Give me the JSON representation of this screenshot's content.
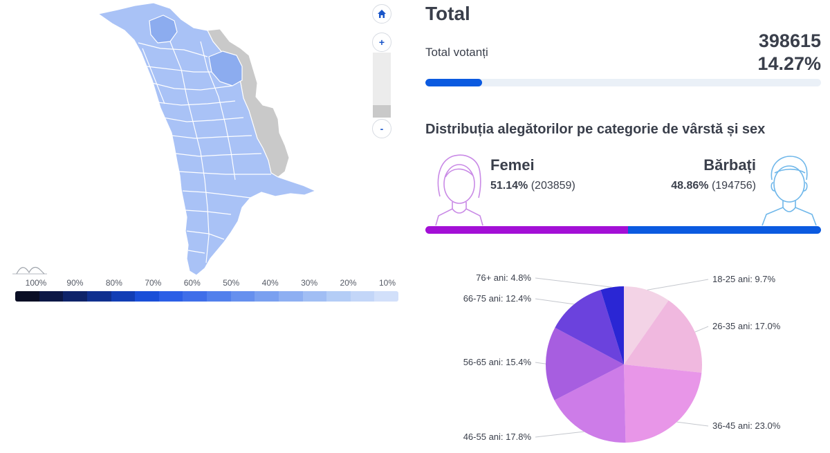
{
  "map": {
    "legend_labels": [
      "100%",
      "90%",
      "80%",
      "70%",
      "60%",
      "50%",
      "40%",
      "30%",
      "20%",
      "10%"
    ],
    "legend_colors": [
      "#0a0e24",
      "#0c1745",
      "#0e2369",
      "#10308f",
      "#123eb5",
      "#1a4fd8",
      "#2c5fe6",
      "#3f6ee9",
      "#5280ec",
      "#6690ee",
      "#7aa0f0",
      "#8eaff2",
      "#a1bef4",
      "#b4cdf6",
      "#c3d6f8",
      "#d2e0fa"
    ],
    "region_color": "#a9c2f6",
    "highlight_color": "#8cacef",
    "disabled_color": "#c9c9c9",
    "zoom": {
      "home_icon": "home-icon",
      "in_label": "+",
      "out_label": "-"
    }
  },
  "summary": {
    "title": "Total",
    "voters_label": "Total votanți",
    "voters_count": "398615",
    "voters_pct": "14.27%",
    "turnout_fraction": 0.1427
  },
  "distribution": {
    "title": "Distribuția alegătorilor pe categorie de vârstă și sex",
    "female": {
      "label": "Femei",
      "pct": "51.14%",
      "count": "(203859)",
      "value": 51.14,
      "color": "#a30fd6"
    },
    "male": {
      "label": "Bărbați",
      "pct": "48.86%",
      "count": "(194756)",
      "value": 48.86,
      "color": "#0b5ae0"
    }
  },
  "chart_data": {
    "type": "pie",
    "slices": [
      {
        "label": "18-25 ani: 9.7%",
        "value": 9.7,
        "color": "#f3d3e6"
      },
      {
        "label": "26-35 ani: 17.0%",
        "value": 17.0,
        "color": "#f0b8df"
      },
      {
        "label": "36-45 ani: 23.0%",
        "value": 23.0,
        "color": "#e896e8"
      },
      {
        "label": "46-55 ani: 17.8%",
        "value": 17.8,
        "color": "#cd7ce8"
      },
      {
        "label": "56-65 ani: 15.4%",
        "value": 15.4,
        "color": "#a75ee0"
      },
      {
        "label": "66-75 ani: 12.4%",
        "value": 12.4,
        "color": "#6b42dd"
      },
      {
        "label": "76+ ani: 4.8%",
        "value": 4.8,
        "color": "#2a26d4"
      }
    ]
  }
}
